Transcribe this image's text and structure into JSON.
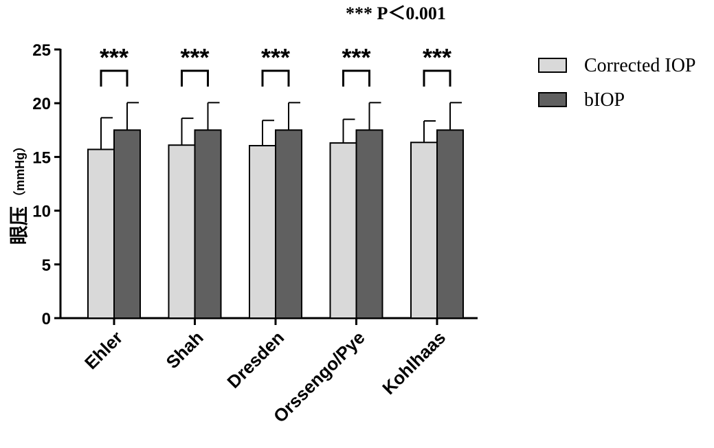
{
  "chart_data": {
    "type": "bar",
    "categories": [
      "Ehler",
      "Shah",
      "Dresden",
      "Orssengo/Pye",
      "Kohlhaas"
    ],
    "series": [
      {
        "name": "Corrected IOP",
        "color": "#d9d9d9",
        "values": [
          15.7,
          16.1,
          16.05,
          16.3,
          16.35
        ],
        "errors": [
          2.95,
          2.5,
          2.35,
          2.2,
          2.0
        ]
      },
      {
        "name": "bIOP",
        "color": "#606060",
        "values": [
          17.5,
          17.5,
          17.5,
          17.5,
          17.5
        ],
        "errors": [
          2.55,
          2.55,
          2.55,
          2.55,
          2.55
        ]
      }
    ],
    "ylabel": "眼压（mmHg）",
    "ylabel_main": "眼压",
    "ylabel_unit": "（mmHg）",
    "ylim": [
      0,
      25
    ],
    "yticks": [
      0,
      5,
      10,
      15,
      20,
      25
    ],
    "significance": [
      "***",
      "***",
      "***",
      "***",
      "***"
    ],
    "annotation": "*** P＜0.001",
    "legend_position": "right"
  }
}
